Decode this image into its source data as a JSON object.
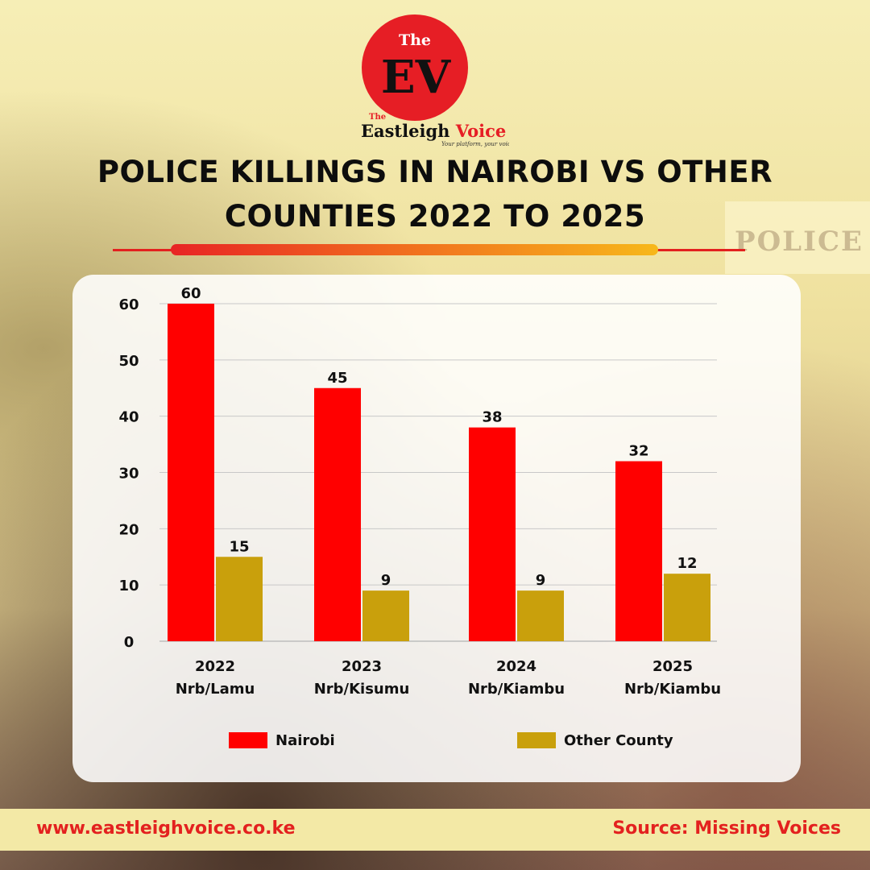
{
  "brand": {
    "logo_top": "The",
    "logo_letters": "EV",
    "logo_small": "The",
    "name": "Eastleigh Voice",
    "tagline": "Your platform, your voice"
  },
  "title_line1": "POLICE KILLINGS IN NAIROBI VS OTHER",
  "title_line2": "COUNTIES 2022 TO 2025",
  "footer": {
    "url": "www.eastleighvoice.co.ke",
    "source": "Source: Missing Voices"
  },
  "colors": {
    "nairobi": "#ff0000",
    "other_county": "#c9a00c",
    "accent": "#e3211f"
  },
  "chart_data": {
    "type": "bar",
    "categories": [
      [
        "2022",
        "Nrb/Lamu"
      ],
      [
        "2023",
        "Nrb/Kisumu"
      ],
      [
        "2024",
        "Nrb/Kiambu"
      ],
      [
        "2025",
        "Nrb/Kiambu"
      ]
    ],
    "series": [
      {
        "name": "Nairobi",
        "values": [
          60,
          45,
          38,
          32
        ],
        "color": "#ff0000"
      },
      {
        "name": "Other County",
        "values": [
          15,
          9,
          9,
          12
        ],
        "color": "#c9a00c"
      }
    ],
    "ylim": [
      0,
      60
    ],
    "yticks": [
      0,
      10,
      20,
      30,
      40,
      50,
      60
    ],
    "grid": true,
    "legend": "bottom",
    "data_labels": true
  }
}
